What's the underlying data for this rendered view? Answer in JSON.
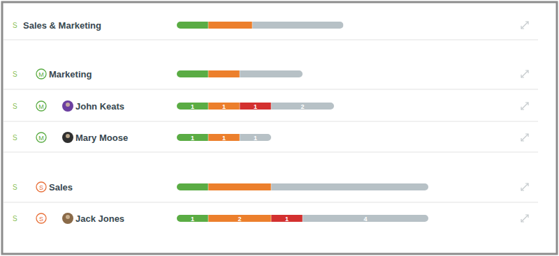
{
  "chart_data": {
    "type": "bar",
    "orientation": "horizontal",
    "stacked": true,
    "data_labels": true,
    "tick_labels": false,
    "grid": false,
    "categories": [
      "Sales & Marketing",
      "Marketing",
      "John Keats",
      "Mary Moose",
      "Sales",
      "Jack Jones"
    ],
    "row_tags": [
      "S",
      "S",
      "S",
      "S",
      "S",
      "S"
    ],
    "row_icons": [
      null,
      "M",
      null,
      null,
      "S",
      null
    ],
    "icon_colors": [
      null,
      "#5aac44",
      null,
      null,
      "#e8703a",
      null
    ],
    "xlim": [
      0,
      12
    ],
    "series": [
      {
        "color": "#5aac44",
        "values": [
          1,
          1,
          1,
          1,
          1,
          1
        ],
        "value_labels": [
          null,
          null,
          "1",
          "1",
          null,
          "1"
        ]
      },
      {
        "color": "#ec7f2c",
        "values": [
          1.4,
          1,
          1,
          1,
          2,
          2
        ],
        "value_labels": [
          null,
          null,
          "1",
          "1",
          null,
          "2"
        ]
      },
      {
        "color": "#d3302f",
        "values": [
          null,
          null,
          1,
          null,
          null,
          1
        ],
        "value_labels": [
          null,
          null,
          "1",
          null,
          null,
          "1"
        ]
      },
      {
        "color": "#b7c1c6",
        "values": [
          2.9,
          2,
          2,
          1,
          5,
          4
        ],
        "value_labels": [
          null,
          null,
          "2",
          "1",
          null,
          "4"
        ]
      }
    ]
  }
}
